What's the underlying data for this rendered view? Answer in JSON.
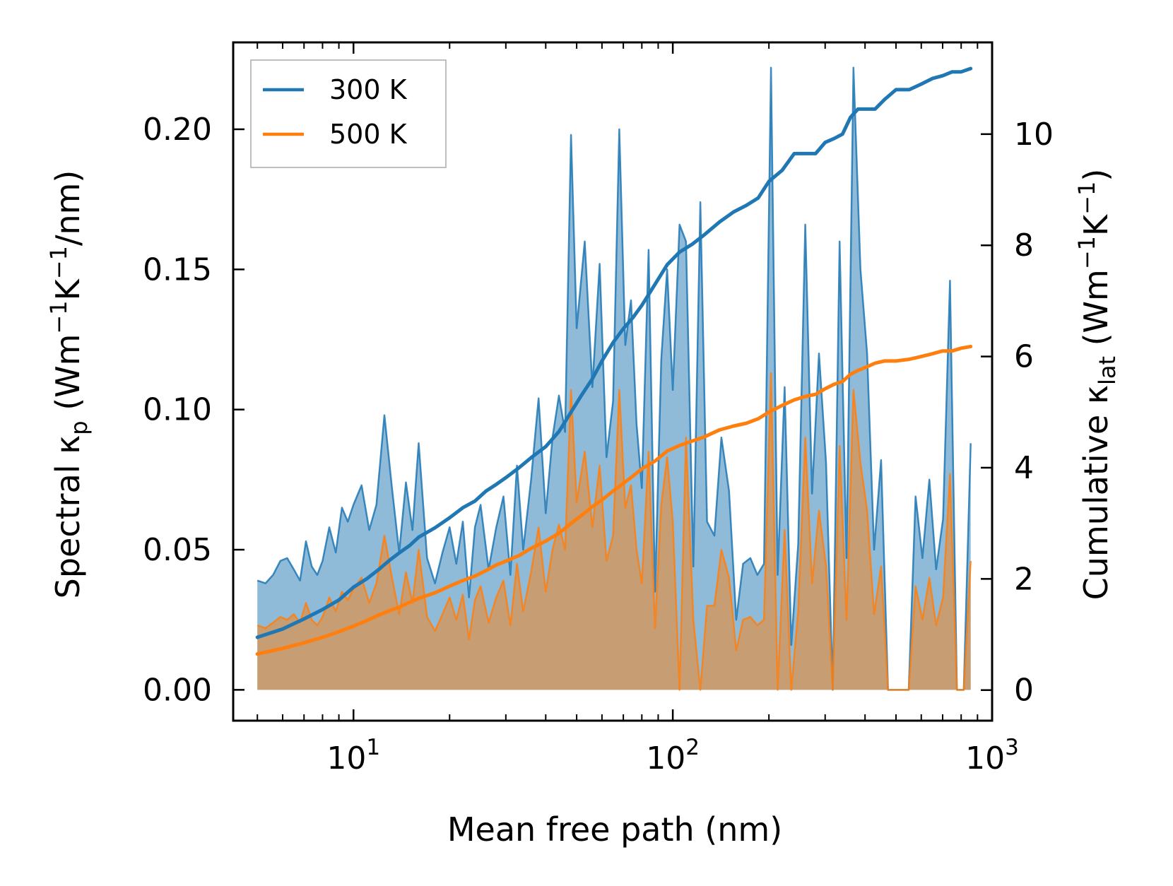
{
  "chart_data": {
    "type": "line",
    "x_scale": "log",
    "xlabel": "Mean free path (nm)",
    "ylabel_left": "Spectral κ_p (Wm⁻¹K⁻¹/nm)",
    "ylabel_right": "Cumulative κ_lat (Wm⁻¹K⁻¹)",
    "xlim": [
      4.2,
      1000
    ],
    "ylim_left": [
      -0.011,
      0.231
    ],
    "ylim_right": [
      -0.55,
      11.65
    ],
    "x_ticks": [
      {
        "value": 10,
        "base": "10",
        "exp": "1"
      },
      {
        "value": 100,
        "base": "10",
        "exp": "2"
      },
      {
        "value": 1000,
        "base": "10",
        "exp": "3"
      }
    ],
    "y_ticks_left": [
      {
        "value": 0.0,
        "label": "0.00"
      },
      {
        "value": 0.05,
        "label": "0.05"
      },
      {
        "value": 0.1,
        "label": "0.10"
      },
      {
        "value": 0.15,
        "label": "0.15"
      },
      {
        "value": 0.2,
        "label": "0.20"
      }
    ],
    "y_ticks_right": [
      {
        "value": 0,
        "label": "0"
      },
      {
        "value": 2,
        "label": "2"
      },
      {
        "value": 4,
        "label": "4"
      },
      {
        "value": 6,
        "label": "6"
      },
      {
        "value": 8,
        "label": "8"
      },
      {
        "value": 10,
        "label": "10"
      }
    ],
    "legend": {
      "location": "top-left",
      "entries": [
        "300 K",
        "500 K"
      ]
    },
    "series": [
      {
        "name": "300 K",
        "color": "#1f77b4",
        "fill_color": "#1f77b4",
        "spectral": {
          "x": [
            5.0,
            5.3,
            5.6,
            5.9,
            6.2,
            6.5,
            6.8,
            7.1,
            7.4,
            7.7,
            8.0,
            8.4,
            8.8,
            9.2,
            9.6,
            10.0,
            10.6,
            11.2,
            11.8,
            12.5,
            13.2,
            13.9,
            14.6,
            15.3,
            16.0,
            17.0,
            18.0,
            19.0,
            20.0,
            21.0,
            22.0,
            23.0,
            24.0,
            25.0,
            26.5,
            28.0,
            29.5,
            31.0,
            32.5,
            34.0,
            36.0,
            38.0,
            40.0,
            42.0,
            44.0,
            46.0,
            48.0,
            50.0,
            53.0,
            56.0,
            59.0,
            62.0,
            65.0,
            68.0,
            71.0,
            74.0,
            77.0,
            80.0,
            84.0,
            88.0,
            92.0,
            96.0,
            100.0,
            105.0,
            110.0,
            116.0,
            122.0,
            128.0,
            135.0,
            142.0,
            150.0,
            158.0,
            166.0,
            175.0,
            184.0,
            193.0,
            203.0,
            213.0,
            224.0,
            235.0,
            247.0,
            260.0,
            273.0,
            287.0,
            302.0,
            317.0,
            333.0,
            350.0,
            368.0,
            387.0,
            406.0,
            427.0,
            449.0,
            472.0,
            496.0,
            521.0,
            548.0,
            576.0,
            605.0,
            636.0,
            668.0,
            702.0,
            738.0,
            776.0,
            815.0,
            857.0
          ],
          "values": [
            0.039,
            0.038,
            0.041,
            0.046,
            0.047,
            0.043,
            0.039,
            0.053,
            0.044,
            0.041,
            0.046,
            0.058,
            0.049,
            0.065,
            0.06,
            0.066,
            0.073,
            0.057,
            0.066,
            0.098,
            0.072,
            0.049,
            0.074,
            0.057,
            0.088,
            0.047,
            0.038,
            0.049,
            0.058,
            0.045,
            0.06,
            0.033,
            0.058,
            0.066,
            0.043,
            0.058,
            0.069,
            0.041,
            0.08,
            0.05,
            0.075,
            0.104,
            0.063,
            0.09,
            0.105,
            0.092,
            0.198,
            0.129,
            0.16,
            0.108,
            0.152,
            0.083,
            0.103,
            0.2,
            0.123,
            0.139,
            0.095,
            0.072,
            0.157,
            0.035,
            0.118,
            0.15,
            0.107,
            0.166,
            0.16,
            0.044,
            0.174,
            0.06,
            0.055,
            0.09,
            0.071,
            0.025,
            0.045,
            0.047,
            0.041,
            0.045,
            0.222,
            0.041,
            0.108,
            0.016,
            0.052,
            0.166,
            0.07,
            0.12,
            0.081,
            0.0,
            0.16,
            0.047,
            0.222,
            0.15,
            0.12,
            0.05,
            0.082,
            0.0,
            0.0,
            0.0,
            0.0,
            0.069,
            0.047,
            0.075,
            0.043,
            0.061,
            0.146,
            0.0,
            0.0,
            0.088
          ]
        },
        "cumulative": {
          "x": [
            5.0,
            6.0,
            7.0,
            8.0,
            9.0,
            10.0,
            11.0,
            12.0,
            13.0,
            14.0,
            15.0,
            16.0,
            18.0,
            20.0,
            22.0,
            24.0,
            26.0,
            28.0,
            30.0,
            33.0,
            36.0,
            40.0,
            44.0,
            48.0,
            52.0,
            56.0,
            60.0,
            65.0,
            70.0,
            75.0,
            80.0,
            88.0,
            96.0,
            105.0,
            115.0,
            125.0,
            140.0,
            155.0,
            170.0,
            185.0,
            200.0,
            220.0,
            240.0,
            260.0,
            280.0,
            300.0,
            320.0,
            340.0,
            360.0,
            380.0,
            400.0,
            430.0,
            460.0,
            500.0,
            550.0,
            600.0,
            650.0,
            700.0,
            750.0,
            800.0,
            857.0
          ],
          "values": [
            0.95,
            1.1,
            1.28,
            1.45,
            1.62,
            1.85,
            2.0,
            2.17,
            2.34,
            2.48,
            2.6,
            2.75,
            2.92,
            3.1,
            3.28,
            3.4,
            3.58,
            3.7,
            3.82,
            4.0,
            4.18,
            4.38,
            4.65,
            5.0,
            5.32,
            5.6,
            5.92,
            6.25,
            6.5,
            6.7,
            6.92,
            7.3,
            7.65,
            7.88,
            8.02,
            8.18,
            8.42,
            8.6,
            8.72,
            8.85,
            9.15,
            9.35,
            9.65,
            9.65,
            9.65,
            9.85,
            9.92,
            10.0,
            10.3,
            10.45,
            10.45,
            10.45,
            10.62,
            10.8,
            10.8,
            10.9,
            11.0,
            11.05,
            11.12,
            11.12,
            11.18
          ]
        }
      },
      {
        "name": "500 K",
        "color": "#ff7f0e",
        "fill_color": "#ff7f0e",
        "spectral": {
          "x": [
            5.0,
            5.3,
            5.6,
            5.9,
            6.2,
            6.5,
            6.8,
            7.1,
            7.4,
            7.7,
            8.0,
            8.4,
            8.8,
            9.2,
            9.6,
            10.0,
            10.6,
            11.2,
            11.8,
            12.5,
            13.2,
            13.9,
            14.6,
            15.3,
            16.0,
            17.0,
            18.0,
            19.0,
            20.0,
            21.0,
            22.0,
            23.0,
            24.0,
            25.0,
            26.5,
            28.0,
            29.5,
            31.0,
            32.5,
            34.0,
            36.0,
            38.0,
            40.0,
            42.0,
            44.0,
            46.0,
            48.0,
            50.0,
            53.0,
            56.0,
            59.0,
            62.0,
            65.0,
            68.0,
            71.0,
            74.0,
            77.0,
            80.0,
            84.0,
            88.0,
            92.0,
            96.0,
            100.0,
            105.0,
            110.0,
            116.0,
            122.0,
            128.0,
            135.0,
            142.0,
            150.0,
            158.0,
            166.0,
            175.0,
            184.0,
            193.0,
            203.0,
            213.0,
            224.0,
            235.0,
            247.0,
            260.0,
            273.0,
            287.0,
            302.0,
            317.0,
            333.0,
            350.0,
            368.0,
            387.0,
            406.0,
            427.0,
            449.0,
            472.0,
            496.0,
            521.0,
            548.0,
            576.0,
            605.0,
            636.0,
            668.0,
            702.0,
            738.0,
            776.0,
            815.0,
            857.0
          ],
          "values": [
            0.023,
            0.022,
            0.024,
            0.026,
            0.025,
            0.027,
            0.024,
            0.031,
            0.025,
            0.023,
            0.026,
            0.033,
            0.028,
            0.035,
            0.032,
            0.036,
            0.04,
            0.031,
            0.038,
            0.055,
            0.04,
            0.027,
            0.042,
            0.031,
            0.05,
            0.026,
            0.021,
            0.027,
            0.033,
            0.025,
            0.034,
            0.018,
            0.032,
            0.037,
            0.024,
            0.033,
            0.039,
            0.023,
            0.045,
            0.028,
            0.042,
            0.058,
            0.035,
            0.05,
            0.059,
            0.05,
            0.107,
            0.067,
            0.085,
            0.058,
            0.08,
            0.046,
            0.055,
            0.107,
            0.065,
            0.073,
            0.05,
            0.038,
            0.085,
            0.022,
            0.066,
            0.083,
            0.06,
            0.0,
            0.09,
            0.025,
            0.0,
            0.03,
            0.03,
            0.05,
            0.04,
            0.014,
            0.025,
            0.026,
            0.023,
            0.025,
            0.113,
            0.0,
            0.057,
            0.0,
            0.028,
            0.09,
            0.038,
            0.064,
            0.044,
            0.0,
            0.087,
            0.025,
            0.107,
            0.081,
            0.064,
            0.027,
            0.044,
            0.0,
            0.0,
            0.0,
            0.0,
            0.037,
            0.025,
            0.04,
            0.023,
            0.033,
            0.077,
            0.0,
            0.0,
            0.046
          ]
        },
        "cumulative": {
          "x": [
            5.0,
            6.0,
            7.0,
            8.0,
            9.0,
            10.0,
            11.0,
            12.0,
            13.0,
            14.0,
            15.0,
            16.0,
            18.0,
            20.0,
            22.0,
            24.0,
            26.0,
            28.0,
            30.0,
            33.0,
            36.0,
            40.0,
            44.0,
            48.0,
            52.0,
            56.0,
            60.0,
            65.0,
            70.0,
            75.0,
            80.0,
            88.0,
            96.0,
            105.0,
            115.0,
            125.0,
            140.0,
            155.0,
            170.0,
            185.0,
            200.0,
            220.0,
            240.0,
            260.0,
            280.0,
            300.0,
            320.0,
            340.0,
            360.0,
            380.0,
            400.0,
            430.0,
            460.0,
            500.0,
            550.0,
            600.0,
            650.0,
            700.0,
            750.0,
            800.0,
            857.0
          ],
          "values": [
            0.65,
            0.75,
            0.85,
            0.95,
            1.05,
            1.15,
            1.25,
            1.35,
            1.43,
            1.5,
            1.58,
            1.65,
            1.75,
            1.87,
            1.97,
            2.05,
            2.15,
            2.25,
            2.32,
            2.42,
            2.55,
            2.68,
            2.82,
            3.0,
            3.15,
            3.3,
            3.42,
            3.58,
            3.72,
            3.85,
            3.98,
            4.12,
            4.3,
            4.4,
            4.48,
            4.55,
            4.68,
            4.75,
            4.8,
            4.88,
            5.0,
            5.12,
            5.22,
            5.28,
            5.32,
            5.42,
            5.5,
            5.55,
            5.68,
            5.75,
            5.8,
            5.88,
            5.92,
            5.92,
            5.95,
            6.0,
            6.05,
            6.1,
            6.1,
            6.15,
            6.18
          ]
        }
      }
    ]
  }
}
